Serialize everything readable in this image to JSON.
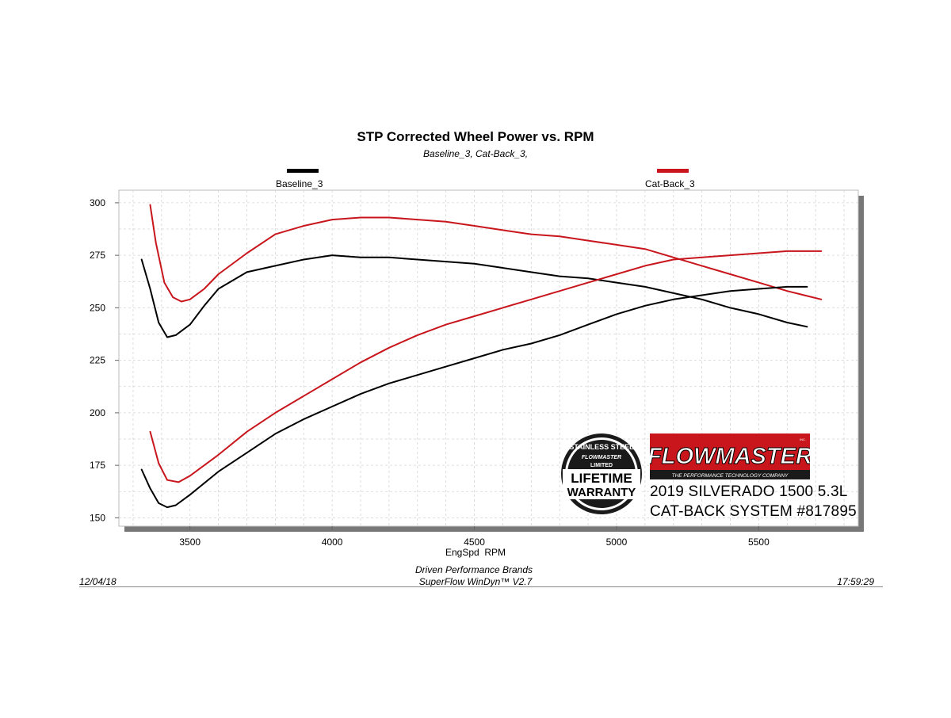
{
  "header": {
    "title": "STP Corrected Wheel Power vs. RPM",
    "subtitle": "Baseline_3, Cat-Back_3,"
  },
  "legend": [
    {
      "label": "Baseline_3",
      "color": "#000000"
    },
    {
      "label": "Cat-Back_3",
      "color": "#c8161c"
    }
  ],
  "footer": {
    "left": "12/04/18",
    "center_line1": "Driven Performance Brands",
    "center_line2": "SuperFlow WinDyn™  V2.7",
    "right": "17:59:29"
  },
  "branding": {
    "badge_line1": "STAINLESS STEEL",
    "badge_line2": "FLOWMASTER",
    "badge_line3": "LIMITED",
    "badge_line4": "LIFETIME",
    "badge_line5": "WARRANTY",
    "logo": "FLOWMASTER",
    "logo_tagline": "THE PERFORMANCE TECHNOLOGY COMPANY",
    "logo_mark": "INC.",
    "vehicle": "2019 SILVERADO 1500 5.3L",
    "system": "CAT-BACK SYSTEM #817895"
  },
  "chart_data": {
    "type": "line",
    "title": "STP Corrected Wheel Power vs. RPM",
    "subtitle": "Baseline_3, Cat-Back_3,",
    "xlabel": "EngSpd  RPM",
    "ylabel": "",
    "xlim": [
      3250,
      5850
    ],
    "ylim": [
      146,
      306
    ],
    "x_ticks": [
      3500,
      4000,
      4500,
      5000,
      5500
    ],
    "y_ticks": [
      150,
      175,
      200,
      225,
      250,
      275,
      300
    ],
    "grid": true,
    "legend_position": "top",
    "series": [
      {
        "name": "Baseline_3",
        "kind": "upper",
        "color": "#000000",
        "points": [
          [
            3330,
            273
          ],
          [
            3360,
            259
          ],
          [
            3390,
            243
          ],
          [
            3420,
            236
          ],
          [
            3450,
            237
          ],
          [
            3500,
            242
          ],
          [
            3550,
            251
          ],
          [
            3600,
            259
          ],
          [
            3700,
            267
          ],
          [
            3800,
            270
          ],
          [
            3900,
            273
          ],
          [
            4000,
            275
          ],
          [
            4100,
            274
          ],
          [
            4200,
            274
          ],
          [
            4300,
            273
          ],
          [
            4400,
            272
          ],
          [
            4500,
            271
          ],
          [
            4600,
            269
          ],
          [
            4700,
            267
          ],
          [
            4800,
            265
          ],
          [
            4900,
            264
          ],
          [
            5000,
            262
          ],
          [
            5100,
            260
          ],
          [
            5200,
            257
          ],
          [
            5300,
            254
          ],
          [
            5400,
            250
          ],
          [
            5500,
            247
          ],
          [
            5600,
            243
          ],
          [
            5670,
            241
          ]
        ]
      },
      {
        "name": "Cat-Back_3",
        "kind": "upper",
        "color": "#c8161c",
        "points": [
          [
            3360,
            299
          ],
          [
            3380,
            281
          ],
          [
            3410,
            262
          ],
          [
            3440,
            255
          ],
          [
            3470,
            253
          ],
          [
            3500,
            254
          ],
          [
            3550,
            259
          ],
          [
            3600,
            266
          ],
          [
            3700,
            276
          ],
          [
            3800,
            285
          ],
          [
            3900,
            289
          ],
          [
            4000,
            292
          ],
          [
            4100,
            293
          ],
          [
            4200,
            293
          ],
          [
            4300,
            292
          ],
          [
            4400,
            291
          ],
          [
            4500,
            289
          ],
          [
            4600,
            287
          ],
          [
            4700,
            285
          ],
          [
            4800,
            284
          ],
          [
            4900,
            282
          ],
          [
            5000,
            280
          ],
          [
            5100,
            278
          ],
          [
            5200,
            274
          ],
          [
            5300,
            270
          ],
          [
            5400,
            266
          ],
          [
            5500,
            262
          ],
          [
            5600,
            258
          ],
          [
            5720,
            254
          ]
        ]
      },
      {
        "name": "Baseline_3",
        "kind": "lower",
        "color": "#000000",
        "points": [
          [
            3330,
            173
          ],
          [
            3360,
            164
          ],
          [
            3390,
            157
          ],
          [
            3420,
            155
          ],
          [
            3450,
            156
          ],
          [
            3500,
            161
          ],
          [
            3600,
            172
          ],
          [
            3700,
            181
          ],
          [
            3800,
            190
          ],
          [
            3900,
            197
          ],
          [
            4000,
            203
          ],
          [
            4100,
            209
          ],
          [
            4200,
            214
          ],
          [
            4300,
            218
          ],
          [
            4400,
            222
          ],
          [
            4500,
            226
          ],
          [
            4600,
            230
          ],
          [
            4700,
            233
          ],
          [
            4800,
            237
          ],
          [
            4900,
            242
          ],
          [
            5000,
            247
          ],
          [
            5100,
            251
          ],
          [
            5200,
            254
          ],
          [
            5300,
            256
          ],
          [
            5400,
            258
          ],
          [
            5500,
            259
          ],
          [
            5600,
            260
          ],
          [
            5670,
            260
          ]
        ]
      },
      {
        "name": "Cat-Back_3",
        "kind": "lower",
        "color": "#c8161c",
        "points": [
          [
            3360,
            191
          ],
          [
            3390,
            176
          ],
          [
            3420,
            168
          ],
          [
            3460,
            167
          ],
          [
            3500,
            170
          ],
          [
            3600,
            180
          ],
          [
            3700,
            191
          ],
          [
            3800,
            200
          ],
          [
            3900,
            208
          ],
          [
            4000,
            216
          ],
          [
            4100,
            224
          ],
          [
            4200,
            231
          ],
          [
            4300,
            237
          ],
          [
            4400,
            242
          ],
          [
            4500,
            246
          ],
          [
            4600,
            250
          ],
          [
            4700,
            254
          ],
          [
            4800,
            258
          ],
          [
            4900,
            262
          ],
          [
            5000,
            266
          ],
          [
            5100,
            270
          ],
          [
            5200,
            273
          ],
          [
            5300,
            274
          ],
          [
            5400,
            275
          ],
          [
            5500,
            276
          ],
          [
            5600,
            277
          ],
          [
            5720,
            277
          ]
        ]
      }
    ]
  }
}
